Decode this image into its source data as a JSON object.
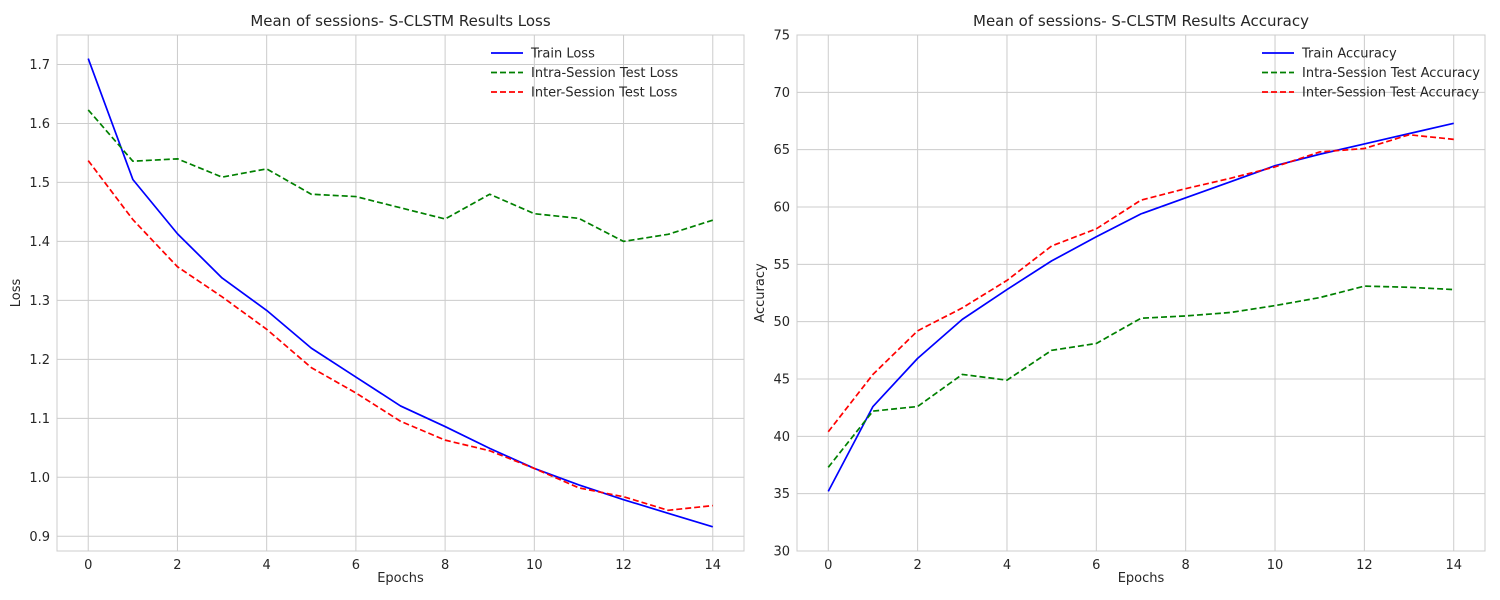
{
  "chart_data": [
    {
      "type": "line",
      "title": "Mean of sessions- S-CLSTM Results Loss",
      "xlabel": "Epochs",
      "ylabel": "Loss",
      "x": [
        0,
        1,
        2,
        3,
        4,
        5,
        6,
        7,
        8,
        9,
        10,
        11,
        12,
        13,
        14
      ],
      "xlim": [
        -0.7,
        14.7
      ],
      "ylim": [
        0.875,
        1.75
      ],
      "xticks": [
        0,
        2,
        4,
        6,
        8,
        10,
        12,
        14
      ],
      "yticks": [
        0.9,
        1.0,
        1.1,
        1.2,
        1.3,
        1.4,
        1.5,
        1.6,
        1.7
      ],
      "grid": true,
      "legend_position": "top-right",
      "series": [
        {
          "name": "Train Loss",
          "color": "#0000ff",
          "dash": "solid",
          "values": [
            1.71,
            1.505,
            1.413,
            1.338,
            1.283,
            1.219,
            1.17,
            1.121,
            1.086,
            1.049,
            1.015,
            0.987,
            0.962,
            0.939,
            0.916
          ]
        },
        {
          "name": "Intra-Session Test Loss",
          "color": "#008000",
          "dash": "dashed",
          "values": [
            1.623,
            1.536,
            1.54,
            1.509,
            1.523,
            1.48,
            1.476,
            1.457,
            1.438,
            1.48,
            1.447,
            1.439,
            1.4,
            1.412,
            1.436
          ]
        },
        {
          "name": "Inter-Session Test Loss",
          "color": "#ff0000",
          "dash": "dashed",
          "values": [
            1.537,
            1.437,
            1.357,
            1.306,
            1.251,
            1.186,
            1.143,
            1.095,
            1.063,
            1.045,
            1.015,
            0.982,
            0.967,
            0.944,
            0.952
          ]
        }
      ]
    },
    {
      "type": "line",
      "title": "Mean of sessions- S-CLSTM Results Accuracy",
      "xlabel": "Epochs",
      "ylabel": "Accuracy",
      "x": [
        0,
        1,
        2,
        3,
        4,
        5,
        6,
        7,
        8,
        9,
        10,
        11,
        12,
        13,
        14
      ],
      "xlim": [
        -0.7,
        14.7
      ],
      "ylim": [
        30,
        75
      ],
      "xticks": [
        0,
        2,
        4,
        6,
        8,
        10,
        12,
        14
      ],
      "yticks": [
        30,
        35,
        40,
        45,
        50,
        55,
        60,
        65,
        70,
        75
      ],
      "grid": true,
      "legend_position": "top-right",
      "series": [
        {
          "name": "Train Accuracy",
          "color": "#0000ff",
          "dash": "solid",
          "values": [
            35.2,
            42.6,
            46.8,
            50.2,
            52.8,
            55.3,
            57.4,
            59.4,
            60.8,
            62.2,
            63.6,
            64.6,
            65.5,
            66.4,
            67.3
          ]
        },
        {
          "name": "Intra-Session Test Accuracy",
          "color": "#008000",
          "dash": "dashed",
          "values": [
            37.3,
            42.2,
            42.6,
            45.4,
            44.9,
            47.5,
            48.1,
            50.3,
            50.5,
            50.8,
            51.4,
            52.1,
            53.1,
            53.0,
            52.8
          ]
        },
        {
          "name": "Inter-Session Test Accuracy",
          "color": "#ff0000",
          "dash": "dashed",
          "values": [
            40.4,
            45.4,
            49.2,
            51.2,
            53.6,
            56.6,
            58.1,
            60.6,
            61.6,
            62.5,
            63.5,
            64.8,
            65.1,
            66.3,
            65.9
          ]
        }
      ]
    }
  ]
}
